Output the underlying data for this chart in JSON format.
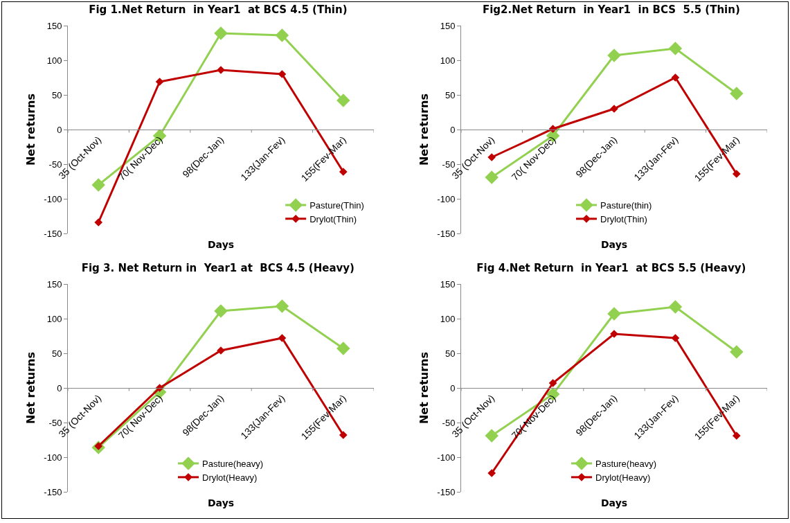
{
  "chart_data": [
    {
      "type": "line",
      "title": "Fig 1.Net Return  in Year1  at BCS 4.5 (Thin)",
      "xlabel": "Days",
      "ylabel": "Net returns",
      "categories": [
        "35 (Oct-Nov)",
        "70( Nov-Dec)",
        "98(Dec-Jan)",
        "133(Jan-Fev)",
        "155(Fev-Mar)"
      ],
      "ylim": [
        -150,
        150
      ],
      "yticks": [
        -150,
        -100,
        -50,
        0,
        50,
        100,
        150
      ],
      "legend": "bottom right",
      "marker": "diamond",
      "series": [
        {
          "name": "Pasture(Thin)",
          "color": "#92d050",
          "values": [
            -80,
            -9,
            139,
            136,
            42
          ]
        },
        {
          "name": "Drylot(Thin)",
          "color": "#c00000",
          "values": [
            -134,
            69,
            86,
            80,
            -61
          ]
        }
      ]
    },
    {
      "type": "line",
      "title": "Fig2.Net Return  in Year1  in BCS  5.5 (Thin)",
      "xlabel": "Days",
      "ylabel": "Net returns",
      "categories": [
        "35 (Oct-Nov)",
        "70( Nov-Dec)",
        "98(Dec-Jan)",
        "133(Jan-Fev)",
        "155(Fev-Mar)"
      ],
      "ylim": [
        -150,
        150
      ],
      "yticks": [
        -150,
        -100,
        -50,
        0,
        50,
        100,
        150
      ],
      "legend": "bottom",
      "marker": "diamond",
      "series": [
        {
          "name": "Pasture(thin)",
          "color": "#92d050",
          "values": [
            -69,
            -9,
            107,
            117,
            52
          ]
        },
        {
          "name": "Drylot(Thin)",
          "color": "#c00000",
          "values": [
            -40,
            1,
            30,
            75,
            -64
          ]
        }
      ]
    },
    {
      "type": "line",
      "title": "Fig 3. Net Return in  Year1 at  BCS 4.5 (Heavy)",
      "xlabel": "Days",
      "ylabel": "Net returns",
      "categories": [
        "35 (Oct-Nov)",
        "70( Nov-Dec)",
        "98(Dec-Jan)",
        "133(Jan-Fev)",
        "155(Fev-Mar)"
      ],
      "ylim": [
        -150,
        150
      ],
      "yticks": [
        -150,
        -100,
        -50,
        0,
        50,
        100,
        150
      ],
      "legend": "bottom",
      "marker": "diamond",
      "series": [
        {
          "name": "Pasture(heavy)",
          "color": "#92d050",
          "values": [
            -86,
            -6,
            111,
            118,
            57
          ]
        },
        {
          "name": "Drylot(Heavy)",
          "color": "#c00000",
          "values": [
            -84,
            0,
            54,
            72,
            -68
          ]
        }
      ]
    },
    {
      "type": "line",
      "title": "Fig 4.Net Return  in Year1  at BCS 5.5 (Heavy)",
      "xlabel": "Days",
      "ylabel": "Net returns",
      "categories": [
        "35 (Oct-Nov)",
        "70( Nov-Dec)",
        "98(Dec-Jan)",
        "133(Jan-Fev)",
        "155(Fev-Mar)"
      ],
      "ylim": [
        -150,
        150
      ],
      "yticks": [
        -150,
        -100,
        -50,
        0,
        50,
        100,
        150
      ],
      "legend": "bottom",
      "marker": "diamond",
      "series": [
        {
          "name": "Pasture(heavy)",
          "color": "#92d050",
          "values": [
            -69,
            -9,
            107,
            117,
            52
          ]
        },
        {
          "name": "Drylot(Heavy)",
          "color": "#c00000",
          "values": [
            -123,
            7,
            78,
            72,
            -69
          ]
        }
      ]
    }
  ]
}
